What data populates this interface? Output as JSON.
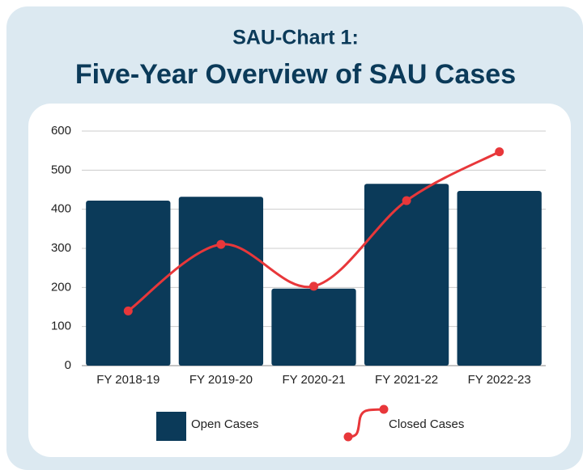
{
  "chart_data": {
    "type": "bar",
    "title": "SAU-Chart 1:",
    "subtitle": "Five-Year Overview of SAU Cases",
    "categories": [
      "FY 2018-19",
      "FY 2019-20",
      "FY 2020-21",
      "FY 2021-22",
      "FY 2022-23"
    ],
    "series": [
      {
        "name": "Open Cases",
        "type": "bar",
        "color": "#0b3a59",
        "values": [
          422,
          432,
          197,
          465,
          447
        ]
      },
      {
        "name": "Closed Cases",
        "type": "line",
        "color": "#e8373a",
        "values": [
          140,
          310,
          203,
          422,
          547
        ]
      }
    ],
    "ylim": [
      0,
      600
    ],
    "yticks": [
      0,
      100,
      200,
      300,
      400,
      500,
      600
    ],
    "grid": true
  }
}
